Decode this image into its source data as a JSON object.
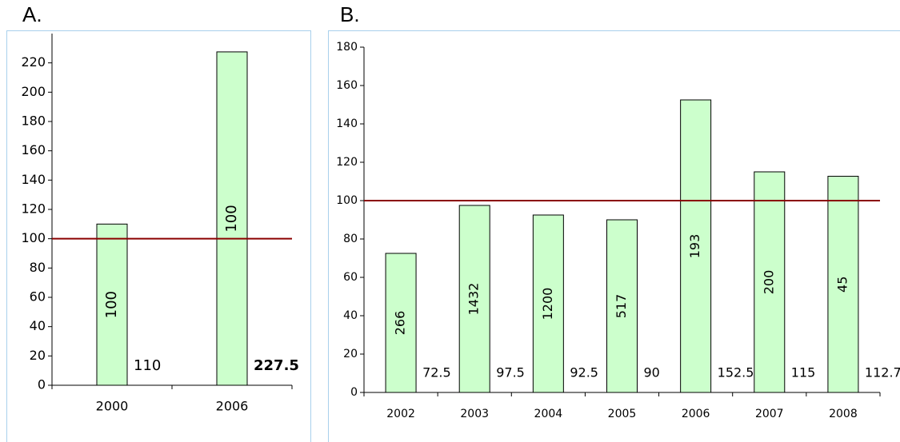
{
  "chart_data": [
    {
      "type": "bar",
      "title": "A.",
      "categories": [
        "2000",
        "2006"
      ],
      "values": [
        110,
        227.5
      ],
      "bar_labels": [
        100,
        100
      ],
      "value_label_bold": [
        false,
        true
      ],
      "color": "#ccffcc",
      "reference_line": {
        "value": 100,
        "color": "#8b0000"
      },
      "ylim": [
        0,
        240
      ],
      "yticks": [
        0,
        20,
        40,
        60,
        80,
        100,
        120,
        140,
        160,
        180,
        200,
        220
      ]
    },
    {
      "type": "bar",
      "title": "B.",
      "categories": [
        "2002",
        "2003",
        "2004",
        "2005",
        "2006",
        "2007",
        "2008"
      ],
      "values": [
        72.5,
        97.5,
        92.5,
        90,
        152.5,
        115,
        112.7
      ],
      "bar_labels": [
        266,
        1432,
        1200,
        517,
        193,
        200,
        45
      ],
      "value_label_bold": [
        false,
        false,
        false,
        false,
        false,
        false,
        false
      ],
      "color": "#ccffcc",
      "reference_line": {
        "value": 100,
        "color": "#8b0000"
      },
      "ylim": [
        0,
        180
      ],
      "yticks": [
        0,
        20,
        40,
        60,
        80,
        100,
        120,
        140,
        160,
        180
      ]
    }
  ]
}
